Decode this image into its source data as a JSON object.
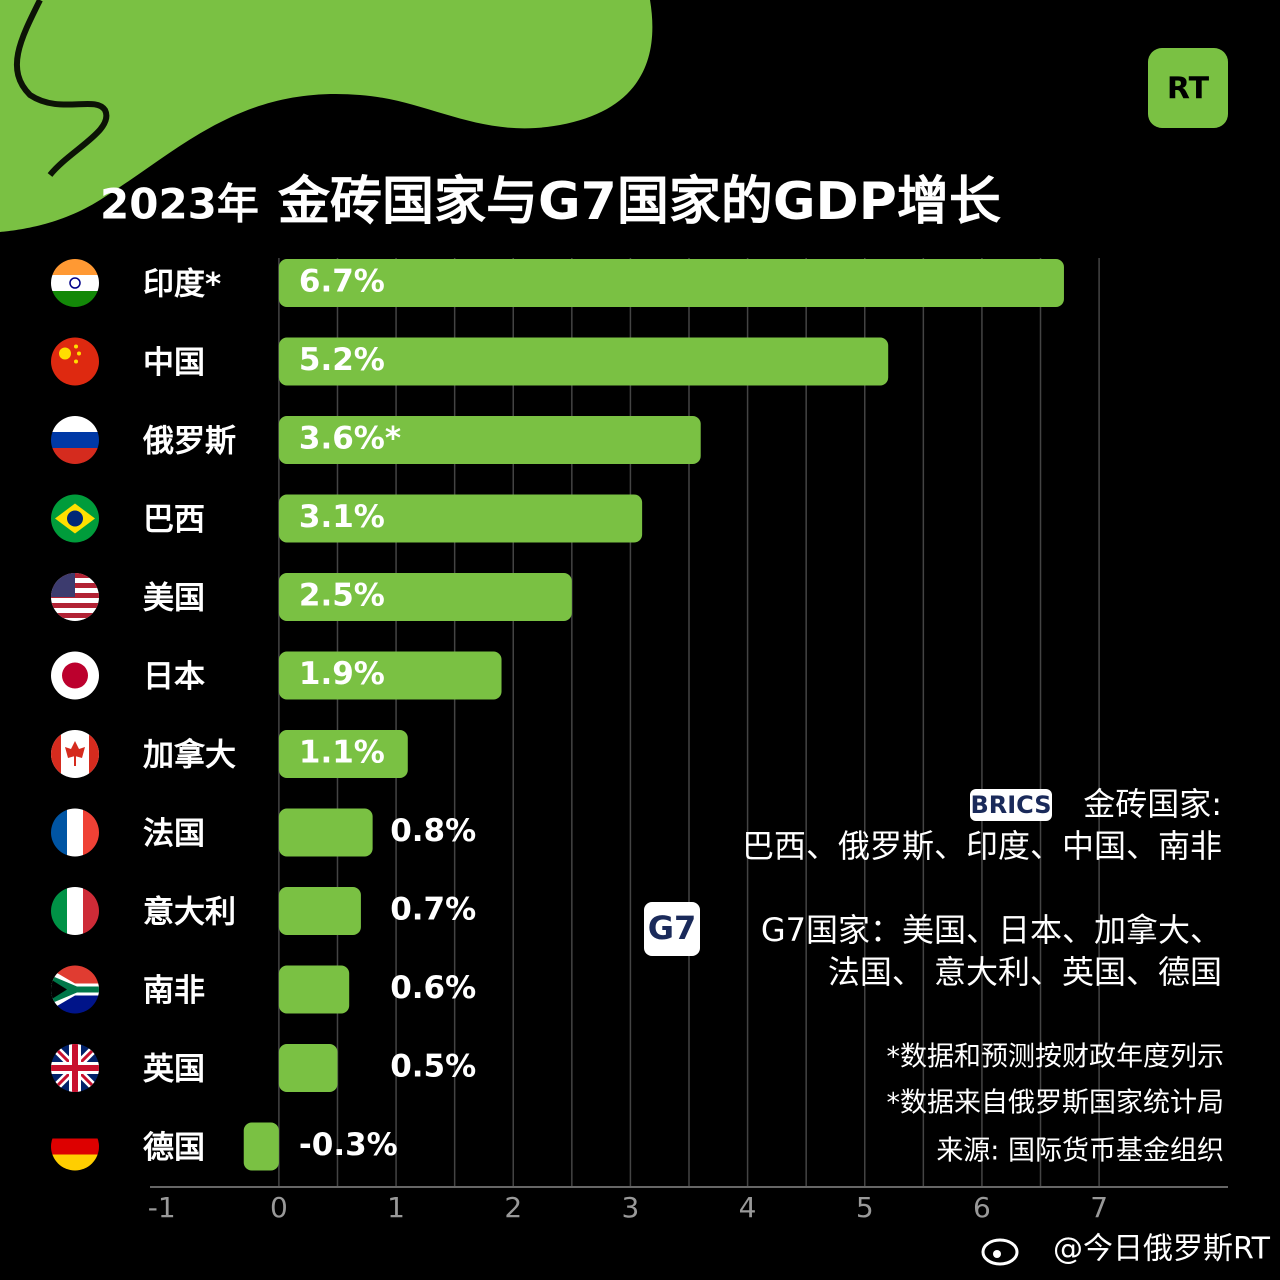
{
  "chart_data": {
    "type": "bar",
    "orientation": "horizontal",
    "title_year": "2023年",
    "title": "金砖国家与G7国家的GDP增长",
    "categories": [
      "印度*",
      "中国",
      "俄罗斯",
      "巴西",
      "美国",
      "日本",
      "加拿大",
      "法国",
      "意大利",
      "南非",
      "英国",
      "德国"
    ],
    "values": [
      6.7,
      5.2,
      3.6,
      3.1,
      2.5,
      1.9,
      1.1,
      0.8,
      0.7,
      0.6,
      0.5,
      -0.3
    ],
    "value_labels": [
      "6.7%",
      "5.2%",
      "3.6%*",
      "3.1%",
      "2.5%",
      "1.9%",
      "1.1%",
      "0.8%",
      "0.7%",
      "0.6%",
      "0.5%",
      "-0.3%"
    ],
    "color": "#7ac143",
    "xlim": [
      -1.1,
      8.1
    ],
    "xticks": [
      -1,
      0,
      1,
      2,
      3,
      4,
      5,
      6,
      7
    ],
    "minor_grid": [
      0.5,
      1.5,
      2.5,
      3.5,
      4.5,
      5.5,
      6.5
    ],
    "grid": true
  },
  "legend": {
    "brics_badge": "BRICS",
    "brics_label": "金砖国家:",
    "brics_members": "巴西、俄罗斯、印度、中国、南非",
    "g7_badge": "G7",
    "g7_line1": "G7国家：美国、日本、加拿大、",
    "g7_line2": "法国、 意大利、英国、德国"
  },
  "notes": [
    "*数据和预测按财政年度列示",
    "*数据来自俄罗斯国家统计局",
    "来源: 国际货币基金组织"
  ],
  "logo": "RT",
  "watermark": "@今日俄罗斯RT"
}
